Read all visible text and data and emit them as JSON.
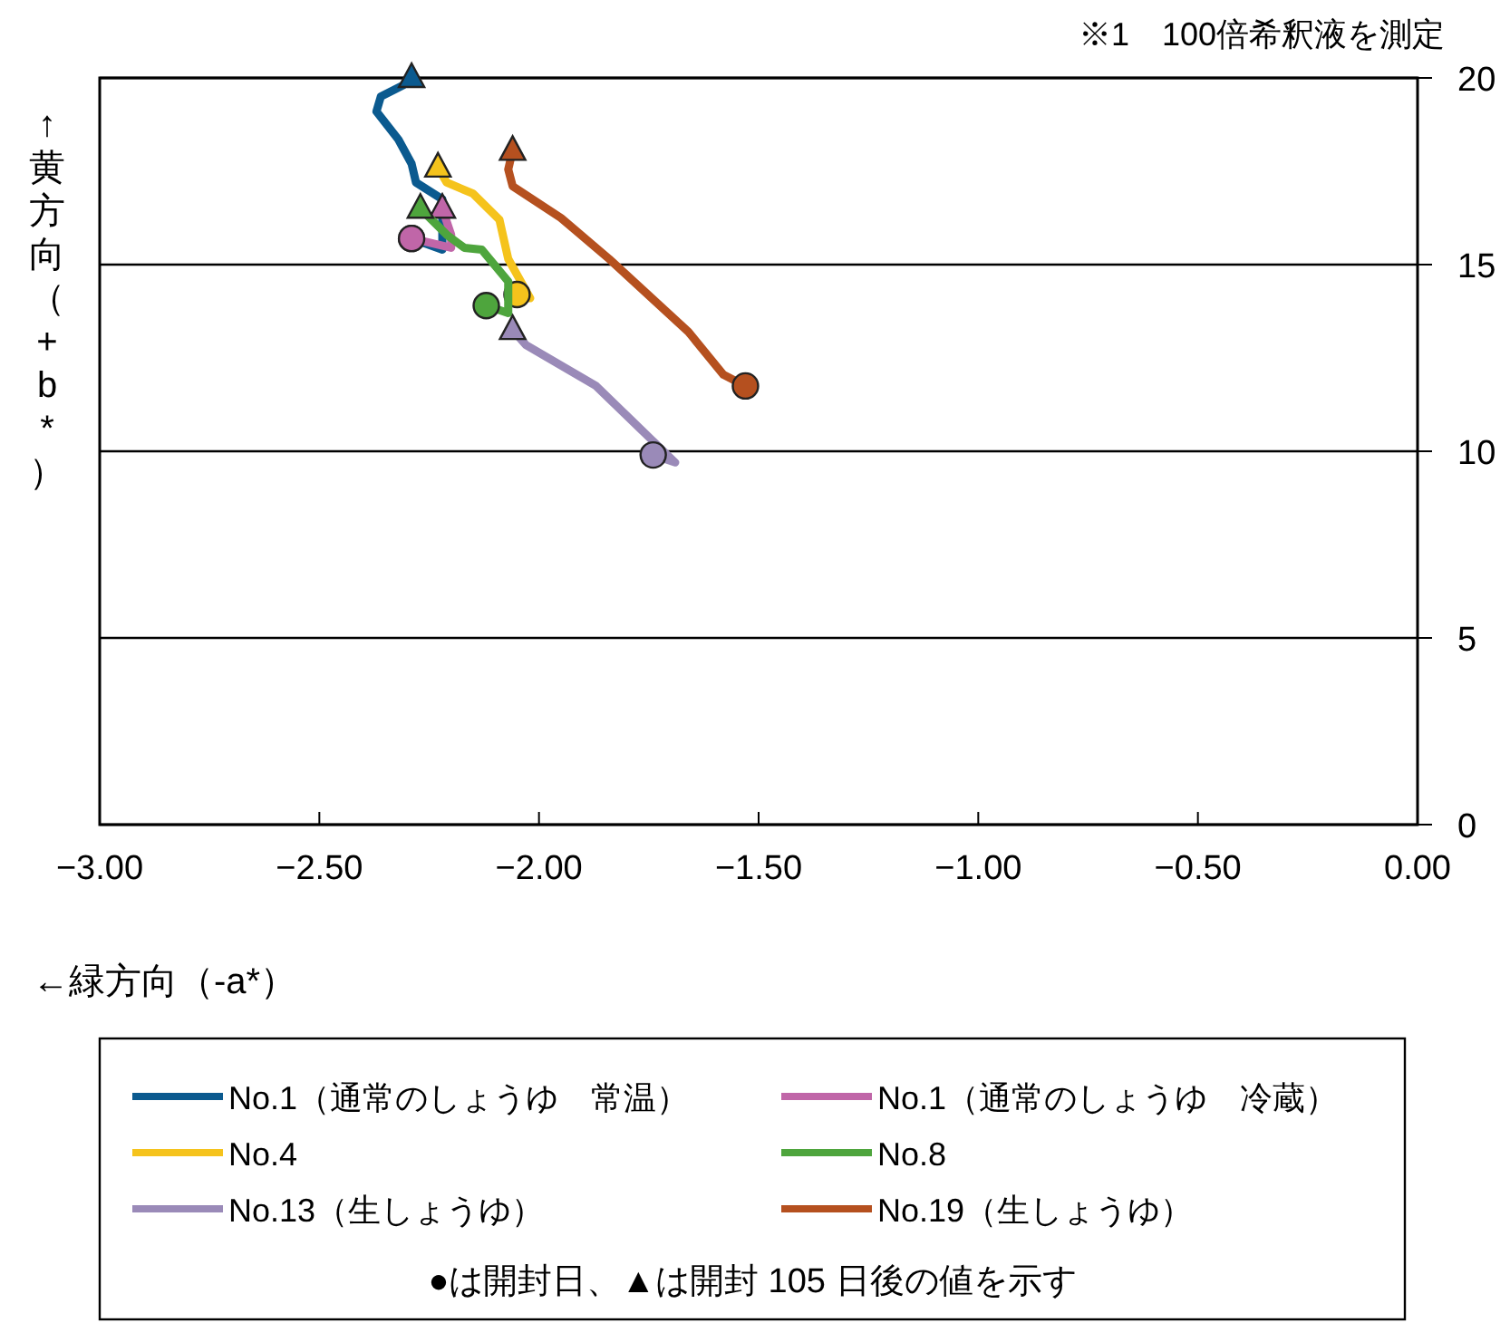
{
  "chart_data": {
    "type": "line",
    "xlabel": "←緑方向（-a*）",
    "ylabel": "↑黄方向（+b*）",
    "annotations": [
      "※1　100倍希釈液を測定",
      "●は開封日、▲は開封 105 日後の値を示す"
    ],
    "xlim": [
      -3,
      0
    ],
    "xticks": [
      {
        "value": -3,
        "label": "−3.00"
      },
      {
        "value": -2.5,
        "label": "−2.50"
      },
      {
        "value": -2,
        "label": "−2.00"
      },
      {
        "value": -1.5,
        "label": "−1.50"
      },
      {
        "value": -1,
        "label": "−1.00"
      },
      {
        "value": -0.5,
        "label": "−0.50"
      },
      {
        "value": 0,
        "label": "0.00"
      }
    ],
    "ylim": [
      0,
      20
    ],
    "yticks": [
      0,
      5,
      10,
      15,
      20
    ],
    "grid": "y",
    "legend": "bottom",
    "series": [
      {
        "name": "No.1（通常のしょうゆ　常温）",
        "color": "#0b5a8f",
        "x": [
          -2.29,
          -2.22,
          -2.22,
          -2.28,
          -2.29,
          -2.32,
          -2.37,
          -2.36,
          -2.31,
          -2.29
        ],
        "values": [
          15.7,
          15.4,
          16.75,
          17.2,
          17.7,
          18.35,
          19.1,
          19.5,
          19.8,
          20.0
        ]
      },
      {
        "name": "No.1（通常のしょうゆ　冷蔵）",
        "color": "#c066a8",
        "x": [
          -2.29,
          -2.2,
          -2.2,
          -2.22
        ],
        "values": [
          15.7,
          15.45,
          15.8,
          16.5
        ]
      },
      {
        "name": "No.4",
        "color": "#f5c31c",
        "x": [
          -2.05,
          -2.02,
          -2.07,
          -2.09,
          -2.15,
          -2.21,
          -2.23
        ],
        "values": [
          14.2,
          14.1,
          15.15,
          16.2,
          16.9,
          17.2,
          17.6
        ]
      },
      {
        "name": "No.8",
        "color": "#4ea53d",
        "x": [
          -2.12,
          -2.07,
          -2.07,
          -2.13,
          -2.17,
          -2.21,
          -2.27
        ],
        "values": [
          13.9,
          13.7,
          14.55,
          15.4,
          15.45,
          15.8,
          16.5
        ]
      },
      {
        "name": "No.13（生しょうゆ）",
        "color": "#9a8ab8",
        "x": [
          -1.74,
          -1.69,
          -1.87,
          -2.03,
          -2.06
        ],
        "values": [
          9.9,
          9.7,
          11.75,
          12.85,
          13.25
        ]
      },
      {
        "name": "No.19（生しょうゆ）",
        "color": "#b5501f",
        "x": [
          -1.53,
          -1.58,
          -1.66,
          -1.84,
          -1.95,
          -2.06,
          -2.07,
          -2.06
        ],
        "values": [
          11.75,
          12.05,
          13.2,
          15.15,
          16.25,
          17.1,
          17.55,
          18.05
        ]
      }
    ]
  }
}
